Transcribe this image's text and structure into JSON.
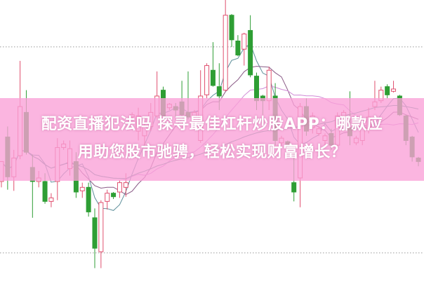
{
  "headline": {
    "line1": "配资直播犯法吗 探寻最佳杠杆炒股APP：哪款应",
    "line2": "用助您股市驰骋，轻松实现财富增长？"
  },
  "colors": {
    "up": "#e0506f",
    "down": "#2e9e34",
    "band": "#f9a8d8",
    "ma_short": "#5e8f9a",
    "ma_mid": "#8a5a86",
    "ma_long": "#d08ad6",
    "ma_trend": "#4a9a8a"
  },
  "chart_data": {
    "type": "candlestick",
    "title": "",
    "xlabel": "",
    "ylabel": "",
    "ylim": [
      0,
      120
    ],
    "grid": "dotted horizontal",
    "candles_ohlc": [
      [
        42.5,
        51,
        40,
        51
      ],
      [
        61.5,
        66,
        39,
        44.5
      ],
      [
        44.5,
        56,
        38.5,
        52.5
      ],
      [
        53.5,
        94,
        52,
        74.5
      ],
      [
        72,
        81.5,
        54,
        55
      ],
      [
        48.5,
        54,
        27,
        42.5
      ],
      [
        42.5,
        47,
        40,
        44
      ],
      [
        42.5,
        46,
        33,
        34
      ],
      [
        34,
        37.5,
        31.5,
        35.5
      ],
      [
        42.5,
        61,
        34.5,
        57
      ],
      [
        57,
        60,
        56,
        58.5
      ],
      [
        48,
        60,
        45,
        56.5
      ],
      [
        51,
        55,
        35.5,
        38
      ],
      [
        38.5,
        42,
        35.5,
        40
      ],
      [
        40,
        42,
        27.5,
        29.5
      ],
      [
        27,
        31,
        5.5,
        14
      ],
      [
        12.5,
        34.5,
        5.5,
        33.5
      ],
      [
        34,
        39,
        30.5,
        37.5
      ],
      [
        37.5,
        38,
        35,
        36
      ],
      [
        38,
        43,
        35.5,
        42
      ],
      [
        40,
        46,
        36,
        42
      ],
      [
        70,
        72,
        69,
        71
      ],
      [
        64,
        74,
        60,
        70.5
      ],
      [
        62,
        70,
        58,
        66
      ],
      [
        66,
        76,
        64,
        72
      ],
      [
        70.5,
        89.5,
        69.5,
        79
      ],
      [
        81.5,
        83,
        70,
        70.5
      ],
      [
        74,
        76,
        73,
        75.5
      ],
      [
        74.5,
        76,
        70,
        73
      ],
      [
        76.5,
        85.5,
        70.5,
        71
      ],
      [
        72,
        89.5,
        69,
        70
      ],
      [
        70,
        73,
        68,
        72
      ],
      [
        60,
        90,
        59,
        79
      ],
      [
        79.5,
        93,
        78,
        92
      ],
      [
        90,
        102,
        83,
        83.5
      ],
      [
        83,
        93,
        73,
        79
      ],
      [
        81.5,
        120,
        81,
        113.5
      ],
      [
        113.5,
        114,
        100,
        103
      ],
      [
        102.5,
        105,
        96,
        96.5
      ],
      [
        99,
        106,
        92,
        105.5
      ],
      [
        107,
        113.5,
        87,
        88
      ],
      [
        87.5,
        89,
        73,
        77
      ],
      [
        79,
        79.5,
        71,
        77
      ],
      [
        77,
        91.5,
        73,
        90
      ],
      [
        79,
        84.5,
        58,
        60
      ],
      [
        59,
        62,
        58,
        61
      ],
      [
        59.5,
        60,
        56,
        58
      ],
      [
        42,
        56,
        34,
        38
      ],
      [
        44,
        76,
        31.5,
        74.5
      ],
      [
        74.5,
        78,
        62,
        64
      ],
      [
        65.5,
        72,
        63,
        70.5
      ],
      [
        63,
        66,
        62,
        65
      ],
      [
        60,
        63,
        58,
        62
      ],
      [
        63,
        65,
        56,
        58
      ],
      [
        58,
        72,
        57,
        70.5
      ],
      [
        70.5,
        73,
        69,
        72
      ],
      [
        65.5,
        81,
        58,
        62
      ],
      [
        59,
        62,
        58,
        61
      ],
      [
        60,
        67,
        58,
        66
      ],
      [
        65,
        74,
        63,
        70
      ],
      [
        74.5,
        85.5,
        73,
        76.5
      ],
      [
        77,
        83,
        76,
        81.5
      ],
      [
        83,
        84,
        78,
        79.5
      ],
      [
        81,
        85.5,
        80.5,
        82
      ],
      [
        79,
        79.5,
        70.5,
        71
      ],
      [
        70.5,
        71,
        58,
        60
      ],
      [
        61.5,
        62,
        51,
        53
      ],
      [
        52.5,
        53,
        49,
        51
      ]
    ],
    "moving_averages": [
      5,
      10,
      20,
      40
    ],
    "gridlines": [
      100,
      12
    ]
  }
}
